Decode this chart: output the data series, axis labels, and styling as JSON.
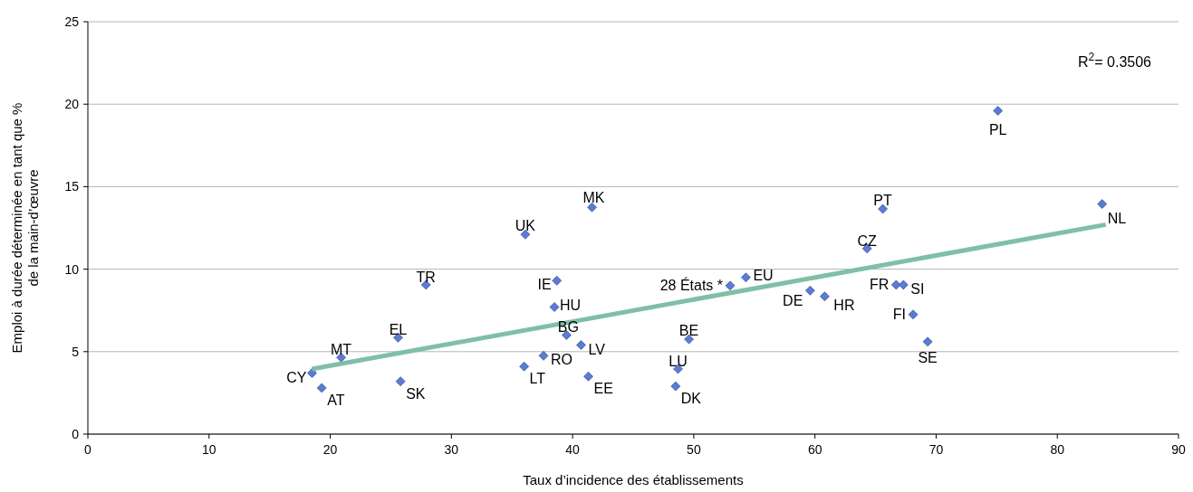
{
  "chart_data": {
    "type": "scatter",
    "xlabel": "Taux d’incidence des établissements",
    "ylabel": "Emploi à durée déterminée en tant que % de la main-d’œuvre",
    "xlim": [
      0,
      90
    ],
    "xticks": [
      0,
      10,
      20,
      30,
      40,
      50,
      60,
      70,
      80,
      90
    ],
    "ylim": [
      0,
      25
    ],
    "yticks": [
      0,
      5,
      10,
      15,
      20,
      25
    ],
    "grid": "y",
    "series": [
      {
        "marker": "diamond",
        "color": "#5b7bd5",
        "x": [
          18.5,
          19.3,
          20.9,
          25.8,
          25.6,
          27.9,
          36.1,
          38.7,
          38.5,
          41.6,
          39.5,
          37.6,
          36.0,
          40.7,
          41.3,
          49.6,
          48.7,
          48.5,
          53.0,
          54.3,
          59.6,
          60.8,
          64.3,
          65.6,
          66.7,
          67.3,
          68.1,
          69.3,
          75.1,
          83.7
        ],
        "values": [
          3.7,
          2.8,
          4.65,
          3.2,
          5.85,
          9.05,
          12.1,
          9.3,
          7.7,
          13.75,
          6.0,
          4.75,
          4.1,
          5.4,
          3.5,
          5.75,
          3.95,
          2.9,
          9.0,
          9.5,
          8.7,
          8.35,
          11.25,
          13.65,
          9.05,
          9.05,
          7.25,
          5.6,
          19.6,
          13.95
        ]
      },
      {
        "type": "line",
        "color": "#7fbfa8",
        "x": [
          18.5,
          84.0
        ],
        "values": [
          3.95,
          12.7
        ]
      }
    ],
    "annotations": [
      {
        "text": "CY",
        "x": 18.5,
        "y": 3.7
      },
      {
        "text": "AT",
        "x": 19.3,
        "y": 2.8
      },
      {
        "text": "MT",
        "x": 20.9,
        "y": 4.65
      },
      {
        "text": "SK",
        "x": 25.8,
        "y": 3.2
      },
      {
        "text": "EL",
        "x": 25.6,
        "y": 5.85
      },
      {
        "text": "TR",
        "x": 27.9,
        "y": 9.05
      },
      {
        "text": "UK",
        "x": 36.1,
        "y": 12.1
      },
      {
        "text": "IE",
        "x": 38.7,
        "y": 9.3
      },
      {
        "text": "HU",
        "x": 38.5,
        "y": 7.7
      },
      {
        "text": "MK",
        "x": 41.6,
        "y": 13.75
      },
      {
        "text": "BG",
        "x": 39.5,
        "y": 6.0
      },
      {
        "text": "RO",
        "x": 37.6,
        "y": 4.75
      },
      {
        "text": "LT",
        "x": 36.0,
        "y": 4.1
      },
      {
        "text": "LV",
        "x": 40.7,
        "y": 5.4
      },
      {
        "text": "EE",
        "x": 41.3,
        "y": 3.5
      },
      {
        "text": "BE",
        "x": 49.6,
        "y": 5.75
      },
      {
        "text": "LU",
        "x": 48.7,
        "y": 3.95
      },
      {
        "text": "DK",
        "x": 48.5,
        "y": 2.9
      },
      {
        "text": "28 États *",
        "x": 53.0,
        "y": 9.0
      },
      {
        "text": "EU",
        "x": 54.3,
        "y": 9.5
      },
      {
        "text": "DE",
        "x": 59.6,
        "y": 8.7
      },
      {
        "text": "HR",
        "x": 60.8,
        "y": 8.35
      },
      {
        "text": "CZ",
        "x": 64.3,
        "y": 11.25
      },
      {
        "text": "PT",
        "x": 65.6,
        "y": 13.65
      },
      {
        "text": "FR",
        "x": 66.7,
        "y": 9.05
      },
      {
        "text": "SI",
        "x": 67.3,
        "y": 9.05
      },
      {
        "text": "FI",
        "x": 68.1,
        "y": 7.25
      },
      {
        "text": "SE",
        "x": 69.3,
        "y": 5.6
      },
      {
        "text": "PL",
        "x": 75.1,
        "y": 19.6
      },
      {
        "text": "NL",
        "x": 83.7,
        "y": 13.95
      },
      "R$^{2}$= 0.3506"
    ]
  }
}
